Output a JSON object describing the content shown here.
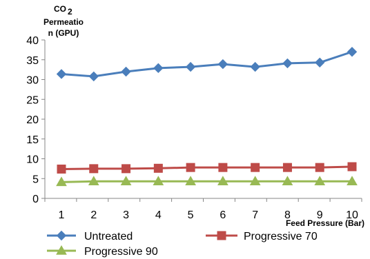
{
  "chart_data": {
    "type": "line",
    "title": "",
    "ylabel_lines": [
      "CO",
      "Permeatio",
      "n (GPU)"
    ],
    "ylabel_subscript": "2",
    "xlabel": "Feed Pressure (Bar)",
    "x": [
      1,
      2,
      3,
      4,
      5,
      6,
      7,
      8,
      9,
      10
    ],
    "ylim": [
      0,
      40
    ],
    "yticks": [
      0,
      5,
      10,
      15,
      20,
      25,
      30,
      35,
      40
    ],
    "grid": false,
    "legend": "bottom",
    "series": [
      {
        "name": "Untreated",
        "color": "#4A7EBB",
        "marker": "diamond",
        "values": [
          31.4,
          30.8,
          32.0,
          32.9,
          33.2,
          33.9,
          33.2,
          34.1,
          34.3,
          37.0
        ]
      },
      {
        "name": "Progressive 70",
        "color": "#BE4B48",
        "marker": "square",
        "values": [
          7.4,
          7.5,
          7.5,
          7.6,
          7.8,
          7.8,
          7.8,
          7.8,
          7.8,
          8.0
        ]
      },
      {
        "name": "Progressive 90",
        "color": "#98B954",
        "marker": "triangle",
        "values": [
          4.1,
          4.3,
          4.3,
          4.3,
          4.3,
          4.3,
          4.3,
          4.3,
          4.3,
          4.3
        ]
      }
    ]
  }
}
